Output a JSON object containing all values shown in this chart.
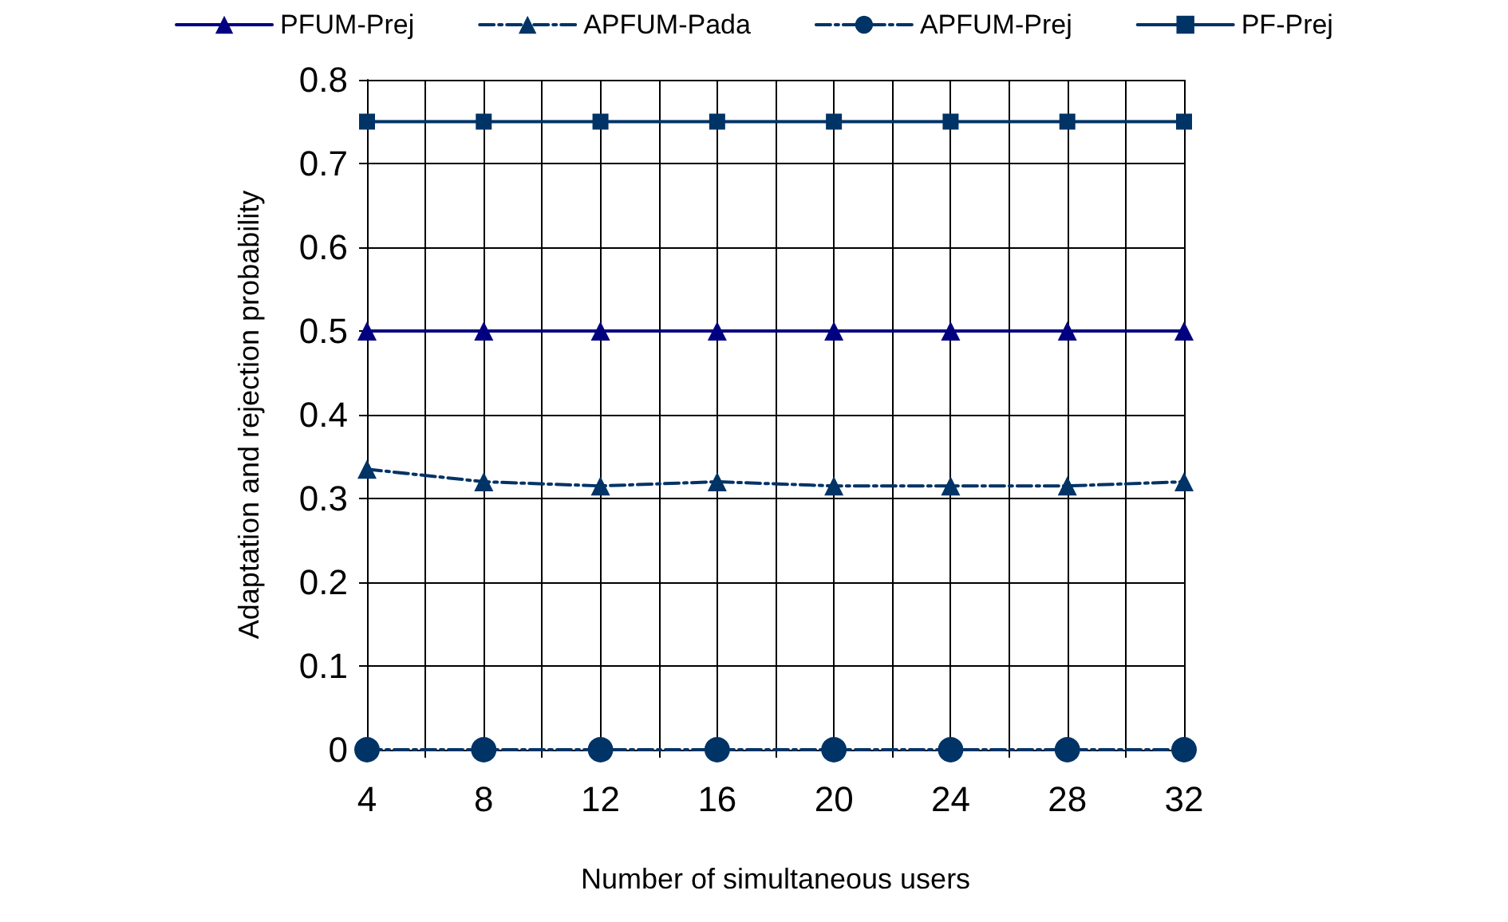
{
  "chart_data": {
    "type": "line",
    "xlabel": "Number of simultaneous users",
    "ylabel": "Adaptation and rejection probability",
    "x": [
      4,
      8,
      12,
      16,
      20,
      24,
      28,
      32
    ],
    "series": [
      {
        "name": "PFUM-Prej",
        "color": "#000080",
        "marker": "triangle",
        "line_style": "solid",
        "values": [
          0.5,
          0.5,
          0.5,
          0.5,
          0.5,
          0.5,
          0.5,
          0.5
        ]
      },
      {
        "name": "APFUM-Pada",
        "color": "#003366",
        "marker": "triangle",
        "line_style": "dashed",
        "values": [
          0.335,
          0.32,
          0.315,
          0.32,
          0.315,
          0.315,
          0.315,
          0.32
        ]
      },
      {
        "name": "APFUM-Prej",
        "color": "#003366",
        "marker": "circle",
        "line_style": "dashed",
        "values": [
          0,
          0,
          0,
          0,
          0,
          0,
          0,
          0
        ]
      },
      {
        "name": "PF-Prej",
        "color": "#003366",
        "marker": "square",
        "line_style": "solid",
        "values": [
          0.75,
          0.75,
          0.75,
          0.75,
          0.75,
          0.75,
          0.75,
          0.75
        ]
      }
    ],
    "xlim": [
      4,
      32
    ],
    "xticks": [
      4,
      {
        "value": 6,
        "label": null
      },
      8,
      {
        "value": 10,
        "label": null
      },
      12,
      {
        "value": 14,
        "label": null
      },
      16,
      {
        "value": 18,
        "label": null
      },
      20,
      {
        "value": 22,
        "label": null
      },
      24,
      {
        "value": 26,
        "label": null
      },
      28,
      {
        "value": 30,
        "label": null
      },
      32
    ],
    "ylim": [
      0,
      0.8
    ],
    "yticks": [
      0,
      0.1,
      0.2,
      0.3,
      0.4,
      0.5,
      0.6,
      0.7,
      0.8
    ],
    "grid": true,
    "legend": "top"
  }
}
